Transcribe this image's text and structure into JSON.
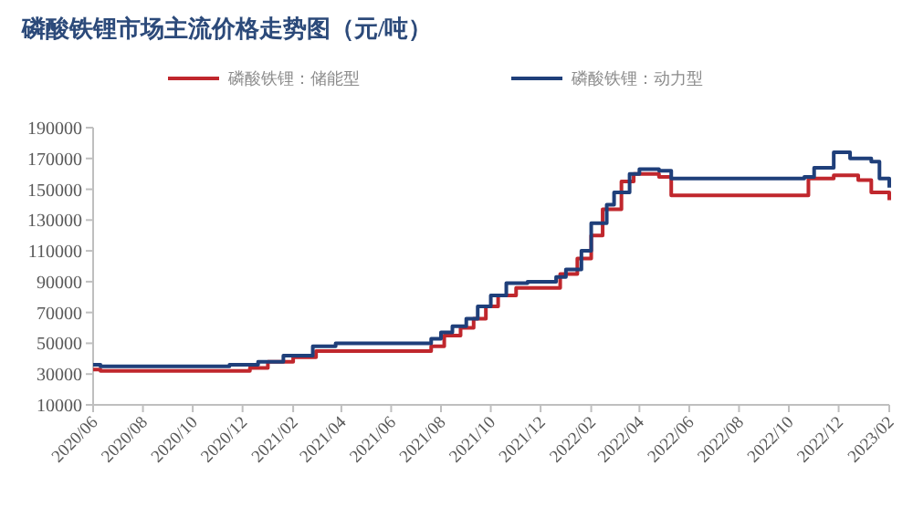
{
  "chart_data": {
    "type": "step",
    "title": "磷酸铁锂市场主流价格走势图（元/吨）",
    "legend": "top",
    "xlim": [
      "2020-06",
      "2023-02"
    ],
    "ylim": [
      10000,
      190000
    ],
    "yticks": [
      10000,
      30000,
      50000,
      70000,
      90000,
      110000,
      130000,
      150000,
      170000,
      190000
    ],
    "xticks": [
      {
        "value": "2020-06",
        "label": "2020/06"
      },
      {
        "value": "2020-08",
        "label": "2020/08"
      },
      {
        "value": "2020-10",
        "label": "2020/10"
      },
      {
        "value": "2020-12",
        "label": "2020/12"
      },
      {
        "value": "2021-02",
        "label": "2021/02"
      },
      {
        "value": "2021-04",
        "label": "2021/04"
      },
      {
        "value": "2021-06",
        "label": "2021/06"
      },
      {
        "value": "2021-08",
        "label": "2021/08"
      },
      {
        "value": "2021-10",
        "label": "2021/10"
      },
      {
        "value": "2021-12",
        "label": "2021/12"
      },
      {
        "value": "2022-02",
        "label": "2022/02"
      },
      {
        "value": "2022-04",
        "label": "2022/04"
      },
      {
        "value": "2022-06",
        "label": "2022/06"
      },
      {
        "value": "2022-08",
        "label": "2022/08"
      },
      {
        "value": "2022-10",
        "label": "2022/10"
      },
      {
        "value": "2022-12",
        "label": "2022/12"
      },
      {
        "value": "2023-02",
        "label": "2023/02"
      }
    ],
    "series": [
      {
        "name": "磷酸铁锂：储能型",
        "color": "#c0272d",
        "x": [
          "2020-06-01",
          "2020-06-10",
          "2020-12-10",
          "2021-01-01",
          "2021-02-01",
          "2021-03-01",
          "2021-07-20",
          "2021-08-05",
          "2021-08-25",
          "2021-09-10",
          "2021-09-25",
          "2021-10-10",
          "2021-11-01",
          "2021-12-25",
          "2022-01-15",
          "2022-02-01",
          "2022-02-15",
          "2022-03-10",
          "2022-03-25",
          "2022-04-25",
          "2022-05-10",
          "2022-10-25",
          "2022-11-25",
          "2022-12-25",
          "2023-01-10",
          "2023-02-01"
        ],
        "values": [
          33000,
          32000,
          34000,
          38000,
          41000,
          45000,
          48000,
          55000,
          60000,
          66000,
          74000,
          81000,
          86000,
          95000,
          105000,
          120000,
          137000,
          155000,
          160000,
          158000,
          146000,
          157000,
          159000,
          156000,
          148000,
          143000
        ]
      },
      {
        "name": "磷酸铁锂：动力型",
        "color": "#1f3f7a",
        "x": [
          "2020-06-01",
          "2020-06-10",
          "2020-11-15",
          "2020-12-20",
          "2021-01-20",
          "2021-02-25",
          "2021-03-25",
          "2021-07-20",
          "2021-08-01",
          "2021-08-15",
          "2021-09-01",
          "2021-09-15",
          "2021-10-01",
          "2021-10-20",
          "2021-11-15",
          "2021-12-20",
          "2022-01-01",
          "2022-01-20",
          "2022-02-01",
          "2022-02-20",
          "2022-03-01",
          "2022-03-20",
          "2022-04-01",
          "2022-04-25",
          "2022-05-10",
          "2022-10-20",
          "2022-11-01",
          "2022-11-25",
          "2022-12-15",
          "2023-01-10",
          "2023-01-20",
          "2023-02-01"
        ],
        "values": [
          36000,
          35000,
          36000,
          38000,
          42000,
          48000,
          50000,
          53000,
          57000,
          61000,
          66000,
          74000,
          81000,
          89000,
          90000,
          93000,
          98000,
          110000,
          128000,
          140000,
          148000,
          160000,
          163000,
          162000,
          157000,
          158000,
          164000,
          174000,
          170000,
          168000,
          157000,
          151000
        ]
      }
    ]
  }
}
